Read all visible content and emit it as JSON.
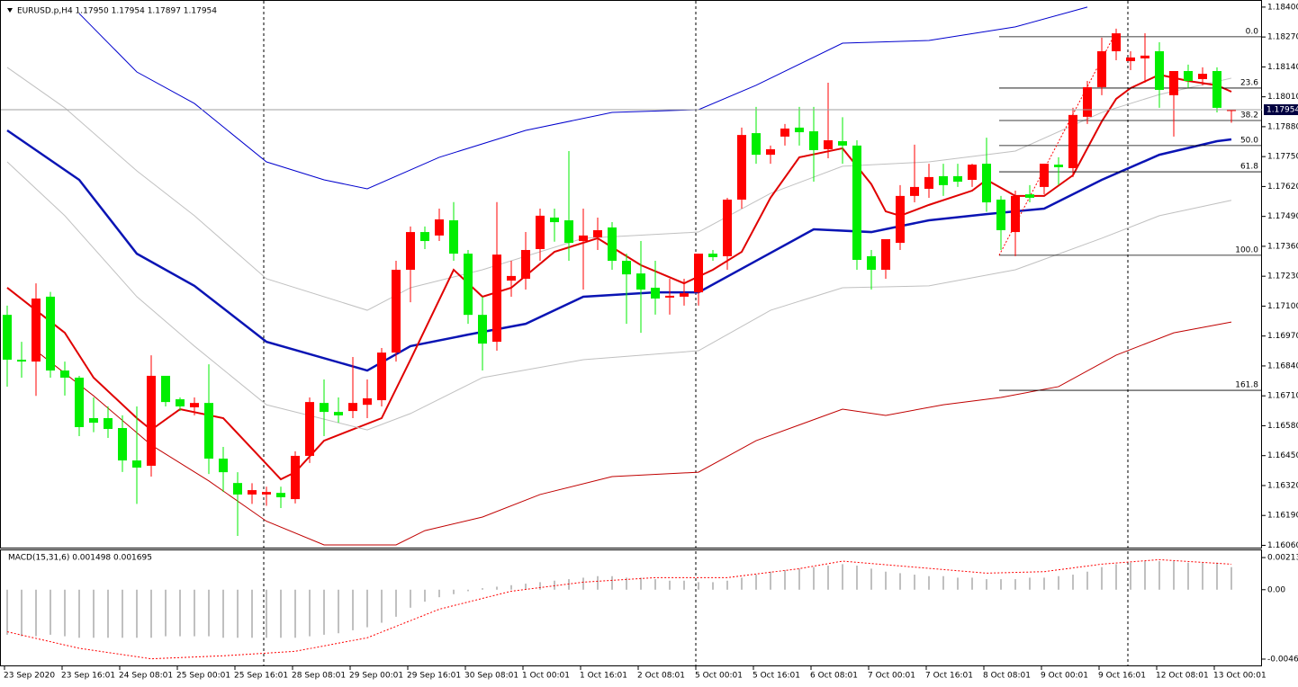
{
  "chart_data": [
    {
      "type": "candlestick",
      "title": "EURUSD.p,H4  1.17950 1.17954 1.17897 1.17954",
      "categories": [
        "23 Sep 2020",
        null,
        null,
        null,
        "23 Sep 16:01",
        null,
        null,
        null,
        "24 Sep 08:01",
        null,
        null,
        null,
        "25 Sep 00:01",
        null,
        null,
        null,
        "25 Sep 16:01",
        null,
        null,
        null,
        "28 Sep 08:01",
        null,
        null,
        null,
        "29 Sep 00:01",
        null,
        null,
        null,
        "29 Sep 16:01",
        null,
        null,
        null,
        "30 Sep 08:01",
        null,
        null,
        null,
        "1 Oct 00:01",
        null,
        null,
        null,
        "1 Oct 16:01",
        null,
        null,
        null,
        "2 Oct 08:01",
        null,
        null,
        null,
        "5 Oct 00:01",
        null,
        null,
        null,
        "5 Oct 16:01",
        null,
        null,
        null,
        "6 Oct 08:01",
        null,
        null,
        null,
        "7 Oct 00:01",
        null,
        null,
        null,
        "7 Oct 16:01",
        null,
        null,
        null,
        "8 Oct 08:01",
        null,
        null,
        null,
        "9 Oct 00:01",
        null,
        null,
        null,
        "9 Oct 16:01",
        null,
        null,
        null,
        "12 Oct 08:01",
        null,
        null,
        null,
        "13 Oct 00:01",
        null
      ],
      "open": [
        1.17062,
        1.16867,
        1.16859,
        1.17141,
        1.1682,
        1.16789,
        1.16613,
        1.16613,
        1.1657,
        1.16429,
        1.16406,
        1.16797,
        1.16695,
        1.1666,
        1.16679,
        1.16437,
        1.16331,
        1.16281,
        1.16281,
        1.16288,
        1.16261,
        1.16449,
        1.16679,
        1.1664,
        1.16644,
        1.16671,
        1.16691,
        1.16898,
        1.17258,
        1.17422,
        1.17407,
        1.17473,
        1.17328,
        1.17062,
        1.16945,
        1.17211,
        1.17219,
        1.17348,
        1.17485,
        1.17473,
        1.17383,
        1.17399,
        1.17442,
        1.17297,
        1.17242,
        1.1718,
        1.17137,
        1.17141,
        1.1716,
        1.17328,
        1.17317,
        1.17563,
        1.17852,
        1.17758,
        1.17837,
        1.17876,
        1.1786,
        1.17782,
        1.17817,
        1.17798,
        1.17317,
        1.17258,
        1.17375,
        1.17579,
        1.1761,
        1.17665,
        1.17665,
        1.17649,
        1.17719,
        1.17563,
        1.17422,
        1.17586,
        1.17618,
        1.17715,
        1.177,
        1.17923,
        1.18052,
        1.18208,
        1.18165,
        1.18177,
        1.18208,
        1.18017,
        1.18122,
        1.18087,
        1.18122,
        1.1795
      ],
      "high": [
        1.17102,
        1.16945,
        1.17199,
        1.17162,
        1.16859,
        1.16797,
        1.16703,
        1.16664,
        1.16625,
        1.16664,
        1.16886,
        1.16797,
        1.16703,
        1.16703,
        1.16847,
        1.16488,
        1.16378,
        1.1633,
        1.16315,
        1.16315,
        1.16469,
        1.16703,
        1.16781,
        1.16703,
        1.16879,
        1.16781,
        1.16918,
        1.17297,
        1.17446,
        1.17446,
        1.17524,
        1.17552,
        1.17344,
        1.17141,
        1.17552,
        1.17297,
        1.17422,
        1.17524,
        1.17524,
        1.17774,
        1.17524,
        1.17485,
        1.17465,
        1.17328,
        1.17383,
        1.17297,
        1.17219,
        1.17219,
        1.17328,
        1.17344,
        1.17571,
        1.17876,
        1.17966,
        1.17798,
        1.17892,
        1.17966,
        1.17966,
        1.18071,
        1.17921,
        1.17821,
        1.17344,
        1.17391,
        1.17626,
        1.17802,
        1.17719,
        1.17719,
        1.17719,
        1.17719,
        1.17832,
        1.17579,
        1.17602,
        1.17626,
        1.17719,
        1.17747,
        1.17962,
        1.18079,
        1.18267,
        1.18306,
        1.18208,
        1.18286,
        1.18247,
        1.18122,
        1.1815,
        1.18138,
        1.18138,
        1.17954
      ],
      "low": [
        1.1675,
        1.16789,
        1.1671,
        1.16789,
        1.16711,
        1.16535,
        1.16552,
        1.16527,
        1.16379,
        1.1624,
        1.16359,
        1.16664,
        1.16644,
        1.16625,
        1.1637,
        1.16292,
        1.16101,
        1.1624,
        1.16232,
        1.16222,
        1.16242,
        1.16418,
        1.16535,
        1.16593,
        1.16613,
        1.16613,
        1.16664,
        1.16859,
        1.17117,
        1.17348,
        1.17383,
        1.17297,
        1.17023,
        1.1682,
        1.16906,
        1.17141,
        1.17172,
        1.17297,
        1.1738,
        1.17297,
        1.17172,
        1.17344,
        1.17258,
        1.17023,
        1.16984,
        1.17063,
        1.17063,
        1.17102,
        1.17102,
        1.17297,
        1.17258,
        1.17524,
        1.17719,
        1.17719,
        1.17798,
        1.17798,
        1.17641,
        1.17743,
        1.17719,
        1.17258,
        1.17172,
        1.17219,
        1.17344,
        1.17551,
        1.17571,
        1.17579,
        1.17618,
        1.17618,
        1.1751,
        1.17344,
        1.17317,
        1.17551,
        1.17586,
        1.17626,
        1.17661,
        1.17892,
        1.18017,
        1.18169,
        1.18126,
        1.18071,
        1.17962,
        1.17837,
        1.18048,
        1.1806,
        1.17942,
        1.17897
      ],
      "close": [
        1.16867,
        1.16859,
        1.17133,
        1.1682,
        1.16789,
        1.16574,
        1.16593,
        1.16566,
        1.16429,
        1.16398,
        1.16797,
        1.16683,
        1.16664,
        1.16679,
        1.16437,
        1.16378,
        1.16281,
        1.163,
        1.16292,
        1.16269,
        1.16449,
        1.16683,
        1.1664,
        1.16625,
        1.16679,
        1.16699,
        1.16898,
        1.17258,
        1.17422,
        1.17383,
        1.17477,
        1.17328,
        1.17062,
        1.16937,
        1.17324,
        1.17231,
        1.17344,
        1.17493,
        1.17465,
        1.17375,
        1.17407,
        1.1743,
        1.17297,
        1.17238,
        1.17172,
        1.17133,
        1.17145,
        1.17156,
        1.17328,
        1.17313,
        1.17563,
        1.17844,
        1.17758,
        1.17782,
        1.17872,
        1.17856,
        1.17778,
        1.17821,
        1.17798,
        1.17301,
        1.17258,
        1.17391,
        1.17579,
        1.17618,
        1.17661,
        1.17626,
        1.17641,
        1.17715,
        1.17551,
        1.1743,
        1.17579,
        1.17571,
        1.17719,
        1.17704,
        1.17931,
        1.18052,
        1.18208,
        1.18286,
        1.18181,
        1.18189,
        1.1804,
        1.18122,
        1.18079,
        1.1811,
        1.17962,
        1.17954
      ],
      "up_color": "#ff0000",
      "down_color": "#00ee00",
      "series": [
        {
          "color": "#0000cd",
          "style": "thin",
          "x": [
            5,
            9,
            13,
            18,
            22,
            25,
            30,
            36,
            42,
            48,
            52,
            58,
            64,
            70,
            75
          ],
          "values": [
            1.18372,
            1.18118,
            1.17981,
            1.17727,
            1.17649,
            1.1761,
            1.17747,
            1.17864,
            1.17942,
            1.17954,
            1.1806,
            1.18243,
            1.18255,
            1.18314,
            1.184
          ]
        },
        {
          "color": "#c0c0c0",
          "style": "thin",
          "x": [
            0,
            4,
            9,
            13,
            18,
            25,
            28,
            33,
            40,
            48,
            53,
            58,
            64,
            70,
            76,
            80,
            85
          ],
          "values": [
            1.18138,
            1.17962,
            1.17688,
            1.17493,
            1.17219,
            1.17082,
            1.1718,
            1.17258,
            1.17395,
            1.17422,
            1.1759,
            1.17708,
            1.17727,
            1.17774,
            1.17942,
            1.1802,
            1.18091
          ]
        },
        {
          "color": "#0a14b4",
          "style": "thick",
          "x": [
            0,
            5,
            9,
            13,
            18,
            25,
            28,
            32,
            36,
            40,
            45,
            48,
            52,
            56,
            60,
            64,
            68,
            72,
            76,
            80,
            84,
            85
          ],
          "values": [
            1.17864,
            1.17649,
            1.17328,
            1.17188,
            1.16945,
            1.1682,
            1.16926,
            1.16976,
            1.17023,
            1.17141,
            1.1716,
            1.1716,
            1.17297,
            1.17434,
            1.17422,
            1.17473,
            1.175,
            1.17524,
            1.17649,
            1.17758,
            1.17817,
            1.17825
          ]
        },
        {
          "color": "#e00000",
          "style": "medium",
          "x": [
            0,
            2,
            4,
            6,
            9,
            10,
            12,
            15,
            19,
            20,
            22,
            26,
            28,
            31,
            33,
            35,
            38,
            41,
            44,
            47,
            49,
            51,
            53,
            55,
            58,
            60,
            61,
            62,
            64,
            67,
            68,
            70,
            72,
            74,
            76,
            77,
            78,
            80,
            82,
            84,
            85
          ],
          "values": [
            1.1718,
            1.17082,
            1.16984,
            1.16789,
            1.16613,
            1.16562,
            1.16652,
            1.16613,
            1.16347,
            1.16378,
            1.16515,
            1.16613,
            1.16867,
            1.17258,
            1.17141,
            1.1718,
            1.17336,
            1.17395,
            1.17278,
            1.17199,
            1.17258,
            1.17336,
            1.17571,
            1.17747,
            1.17786,
            1.1763,
            1.17512,
            1.17493,
            1.1754,
            1.17602,
            1.17649,
            1.17579,
            1.17579,
            1.17669,
            1.17903,
            1.18001,
            1.18048,
            1.18106,
            1.18079,
            1.1806,
            1.18032
          ]
        },
        {
          "color": "#c0c0c0",
          "style": "thin",
          "x": [
            0,
            4,
            9,
            13,
            18,
            25,
            28,
            33,
            40,
            48,
            53,
            58,
            64,
            70,
            76,
            80,
            85
          ],
          "values": [
            1.17727,
            1.17493,
            1.17141,
            1.16926,
            1.16671,
            1.16562,
            1.16633,
            1.16789,
            1.16867,
            1.16906,
            1.17082,
            1.1718,
            1.17188,
            1.17258,
            1.17395,
            1.17493,
            1.1756
          ]
        },
        {
          "color": "#c00000",
          "style": "thin",
          "x": [
            2,
            6,
            10,
            14,
            18,
            22,
            27,
            29,
            33,
            37,
            42,
            48,
            52,
            58,
            61,
            65,
            69,
            73,
            77,
            81,
            85
          ],
          "values": [
            1.16906,
            1.1671,
            1.16496,
            1.1634,
            1.16165,
            1.16062,
            1.16062,
            1.16124,
            1.16183,
            1.16281,
            1.16359,
            1.16378,
            1.16515,
            1.16652,
            1.16625,
            1.16671,
            1.16703,
            1.1675,
            1.16887,
            1.16984,
            1.17031
          ]
        }
      ],
      "current_price": 1.17954,
      "fibonacci": {
        "color": "#000000",
        "levels": [
          "0.0",
          "23.6",
          "38.2",
          "50.0",
          "61.8",
          "100.0",
          "161.8"
        ],
        "values": [
          1.18271,
          1.18048,
          1.17907,
          1.17798,
          1.17684,
          1.17321,
          1.16734
        ]
      },
      "ylim": [
        1.16054,
        1.18423
      ],
      "yticks": [
        {
          "value": 1.184,
          "label": "1.18400"
        },
        {
          "value": 1.1827,
          "label": "1.18270"
        },
        {
          "value": 1.1814,
          "label": "1.18140"
        },
        {
          "value": 1.1801,
          "label": "1.18010"
        },
        {
          "value": 1.1788,
          "label": "1.17880"
        },
        {
          "value": 1.1775,
          "label": "1.17750"
        },
        {
          "value": 1.1762,
          "label": "1.17620"
        },
        {
          "value": 1.1749,
          "label": "1.17490"
        },
        {
          "value": 1.1736,
          "label": "1.17360"
        },
        {
          "value": 1.1723,
          "label": "1.17230"
        },
        {
          "value": 1.171,
          "label": "1.17100"
        },
        {
          "value": 1.1697,
          "label": "1.16970"
        },
        {
          "value": 1.1684,
          "label": "1.16840"
        },
        {
          "value": 1.1671,
          "label": "1.16710"
        },
        {
          "value": 1.1658,
          "label": "1.16580"
        },
        {
          "value": 1.1645,
          "label": "1.16450"
        },
        {
          "value": 1.1632,
          "label": "1.16320"
        },
        {
          "value": 1.1619,
          "label": "1.16190"
        },
        {
          "value": 1.1606,
          "label": "1.16060"
        }
      ]
    },
    {
      "type": "macd",
      "title": "MACD(15,31,6) 0.001498 0.001695",
      "histogram": {
        "color": "#c0c0c0",
        "values": [
          -0.003,
          -0.0031,
          -0.0031,
          -0.003,
          -0.0031,
          -0.0032,
          -0.0032,
          -0.0032,
          -0.0032,
          -0.0032,
          -0.0032,
          -0.0031,
          -0.0031,
          -0.0031,
          -0.0031,
          -0.0032,
          -0.0032,
          -0.0032,
          -0.0032,
          -0.0032,
          -0.0032,
          -0.0031,
          -0.003,
          -0.0029,
          -0.0027,
          -0.0025,
          -0.0022,
          -0.0018,
          -0.0012,
          -0.0008,
          -0.0005,
          -0.0003,
          -0.0001,
          0.0001,
          0.0002,
          0.0003,
          0.0004,
          0.0005,
          0.0006,
          0.0007,
          0.0008,
          0.0009,
          0.0009,
          0.0008,
          0.0008,
          0.0007,
          0.0006,
          0.0006,
          0.0005,
          0.0005,
          0.0006,
          0.0008,
          0.001,
          0.0012,
          0.0013,
          0.0014,
          0.0015,
          0.0016,
          0.0017,
          0.0016,
          0.0014,
          0.0012,
          0.0011,
          0.001,
          0.0009,
          0.0009,
          0.0008,
          0.0008,
          0.0007,
          0.0007,
          0.0007,
          0.0008,
          0.0008,
          0.0009,
          0.001,
          0.0012,
          0.0015,
          0.0017,
          0.0018,
          0.0019,
          0.0019,
          0.0019,
          0.0018,
          0.0018,
          0.0018,
          0.001498
        ]
      },
      "signal": {
        "color": "#ff0000",
        "x": [
          0,
          5,
          10,
          15,
          20,
          25,
          30,
          35,
          40,
          45,
          50,
          55,
          58,
          63,
          68,
          72,
          76,
          80,
          85
        ],
        "values": [
          -0.0028,
          -0.0039,
          -0.0046,
          -0.0044,
          -0.0041,
          -0.0032,
          -0.0013,
          -0.0001,
          0.0005,
          0.0008,
          0.0008,
          0.0014,
          0.0019,
          0.0015,
          0.0011,
          0.0012,
          0.0017,
          0.002,
          0.001695
        ]
      },
      "ylim": [
        -0.00504,
        0.00262
      ],
      "yticks": [
        0.002137,
        {
          "value": 0,
          "label": "0.00"
        },
        -0.00462
      ]
    }
  ]
}
